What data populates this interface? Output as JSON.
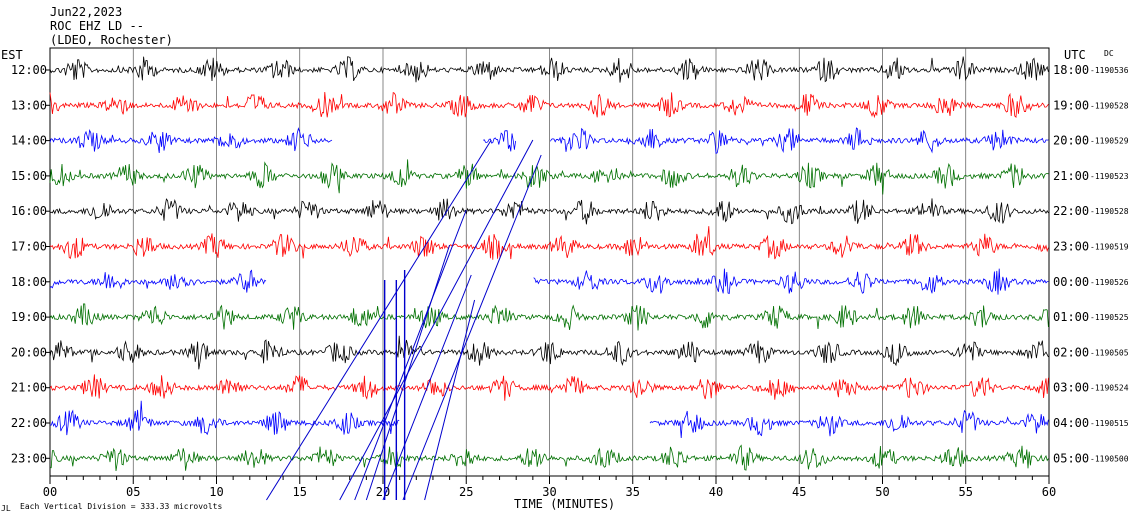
{
  "header": {
    "date": "Jun22,2023",
    "station": "ROC EHZ LD --",
    "network": "(LDEO, Rochester)"
  },
  "left_tz": "EST",
  "right_tz": "UTC",
  "dc_label": "DC",
  "footer": {
    "x_axis_title": "TIME (MINUTES)",
    "scale_note": "Each Vertical Division =  333.33 microvolts",
    "corner_mark": "JL"
  },
  "chart_data": {
    "type": "line",
    "title": "",
    "xlabel": "TIME (MINUTES)",
    "xlim": [
      0,
      60
    ],
    "x_ticks": [
      "00",
      "05",
      "10",
      "15",
      "20",
      "25",
      "30",
      "35",
      "40",
      "45",
      "50",
      "55",
      "60"
    ],
    "vertical_grid_every_min": 5,
    "trace_colors": [
      "#000000",
      "#ff0000",
      "#0000ff",
      "#007000"
    ],
    "rows": [
      {
        "est": "12:00",
        "utc": "18:00",
        "dc": "-1190536",
        "color": "#000000",
        "gaps": []
      },
      {
        "est": "13:00",
        "utc": "19:00",
        "dc": "-1190528",
        "color": "#ff0000",
        "gaps": []
      },
      {
        "est": "14:00",
        "utc": "20:00",
        "dc": "-1190529",
        "color": "#0000ff",
        "gaps": [
          [
            17,
            26
          ],
          [
            28,
            30
          ]
        ]
      },
      {
        "est": "15:00",
        "utc": "21:00",
        "dc": "-1190523",
        "color": "#007000",
        "gaps": []
      },
      {
        "est": "16:00",
        "utc": "22:00",
        "dc": "-1190528",
        "color": "#000000",
        "gaps": []
      },
      {
        "est": "17:00",
        "utc": "23:00",
        "dc": "-1190519",
        "color": "#ff0000",
        "gaps": []
      },
      {
        "est": "18:00",
        "utc": "00:00",
        "dc": "-1190526",
        "color": "#0000ff",
        "gaps": [
          [
            13,
            29
          ]
        ]
      },
      {
        "est": "19:00",
        "utc": "01:00",
        "dc": "-1190525",
        "color": "#007000",
        "gaps": []
      },
      {
        "est": "20:00",
        "utc": "02:00",
        "dc": "-1190505",
        "color": "#000000",
        "gaps": []
      },
      {
        "est": "21:00",
        "utc": "03:00",
        "dc": "-1190524",
        "color": "#ff0000",
        "gaps": []
      },
      {
        "est": "22:00",
        "utc": "04:00",
        "dc": "-1190515",
        "color": "#0000ff",
        "gaps": [
          [
            21,
            36
          ]
        ]
      },
      {
        "est": "23:00",
        "utc": "05:00",
        "dc": "-1190500",
        "color": "#007000",
        "gaps": []
      }
    ],
    "grid": true
  }
}
